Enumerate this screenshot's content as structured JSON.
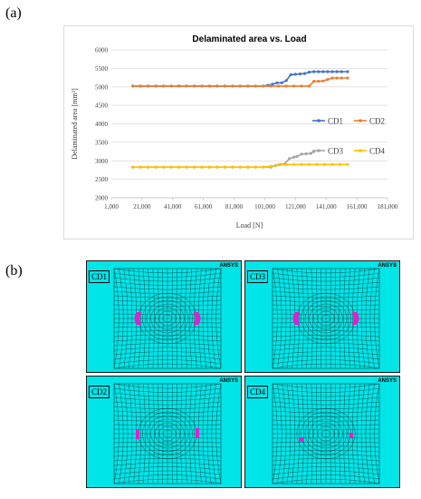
{
  "panel_labels": {
    "a": "(a)",
    "b": "(b)"
  },
  "chart_data": {
    "type": "line",
    "title": "Delaminated area vs. Load",
    "xlabel": "Load [N]",
    "ylabel": "Delaminated area  [mm²]",
    "xlim": [
      1000,
      181000
    ],
    "ylim": [
      2000,
      6000
    ],
    "xticks": [
      1000,
      21000,
      41000,
      61000,
      81000,
      101000,
      121000,
      141000,
      161000,
      181000
    ],
    "xtick_labels": [
      "1,000",
      "21,000",
      "41,000",
      "61,000",
      "81,000",
      "101,000",
      "121,000",
      "141,000",
      "161,000",
      "181,000"
    ],
    "yticks": [
      2000,
      2500,
      3000,
      3500,
      4000,
      4500,
      5000,
      5500,
      6000
    ],
    "grid": "horizontal",
    "legend_position": "right",
    "series": [
      {
        "name": "CD1",
        "color": "#4472c4",
        "x": [
          15000,
          20000,
          25000,
          30000,
          35000,
          40000,
          45000,
          50000,
          55000,
          60000,
          65000,
          70000,
          75000,
          80000,
          85000,
          90000,
          95000,
          100000,
          103000,
          106000,
          109000,
          112000,
          115000,
          118000,
          121000,
          124000,
          127000,
          130000,
          133000,
          136000,
          139000,
          142000,
          145000,
          148000,
          151000,
          155000
        ],
        "y": [
          5020,
          5020,
          5020,
          5020,
          5020,
          5020,
          5020,
          5020,
          5020,
          5020,
          5020,
          5020,
          5020,
          5020,
          5020,
          5020,
          5020,
          5020,
          5040,
          5070,
          5110,
          5110,
          5170,
          5330,
          5340,
          5350,
          5360,
          5400,
          5410,
          5410,
          5410,
          5410,
          5410,
          5410,
          5410,
          5410
        ]
      },
      {
        "name": "CD2",
        "color": "#ed7d31",
        "x": [
          15000,
          20000,
          25000,
          30000,
          35000,
          40000,
          45000,
          50000,
          55000,
          60000,
          65000,
          70000,
          75000,
          80000,
          85000,
          90000,
          95000,
          100000,
          105000,
          110000,
          115000,
          120000,
          125000,
          130000,
          133000,
          136000,
          139000,
          142000,
          145000,
          148000,
          151000,
          155000
        ],
        "y": [
          5020,
          5020,
          5020,
          5020,
          5020,
          5020,
          5020,
          5020,
          5020,
          5020,
          5020,
          5020,
          5020,
          5020,
          5020,
          5020,
          5020,
          5020,
          5020,
          5020,
          5020,
          5020,
          5020,
          5020,
          5150,
          5150,
          5160,
          5200,
          5240,
          5240,
          5240,
          5240
        ]
      },
      {
        "name": "CD3",
        "color": "#a5a5a5",
        "x": [
          15000,
          20000,
          25000,
          30000,
          35000,
          40000,
          45000,
          50000,
          55000,
          60000,
          65000,
          70000,
          75000,
          80000,
          85000,
          90000,
          95000,
          100000,
          105000,
          108000,
          111000,
          114000,
          117000,
          120000,
          122000,
          125000,
          128000,
          131000,
          133000
        ],
        "y": [
          2830,
          2830,
          2830,
          2830,
          2830,
          2830,
          2830,
          2830,
          2830,
          2830,
          2830,
          2830,
          2830,
          2830,
          2830,
          2830,
          2830,
          2830,
          2830,
          2870,
          2900,
          2920,
          3060,
          3100,
          3120,
          3180,
          3190,
          3200,
          3250
        ]
      },
      {
        "name": "CD4",
        "color": "#ffc000",
        "x": [
          15000,
          20000,
          25000,
          30000,
          35000,
          40000,
          45000,
          50000,
          55000,
          60000,
          65000,
          70000,
          75000,
          80000,
          85000,
          90000,
          95000,
          100000,
          105000,
          110000,
          115000,
          120000,
          125000,
          130000,
          135000,
          140000,
          145000,
          150000,
          155000
        ],
        "y": [
          2830,
          2830,
          2830,
          2830,
          2830,
          2830,
          2830,
          2830,
          2830,
          2830,
          2830,
          2830,
          2830,
          2830,
          2830,
          2830,
          2830,
          2830,
          2850,
          2890,
          2900,
          2900,
          2900,
          2900,
          2900,
          2900,
          2900,
          2900,
          2900
        ]
      }
    ]
  },
  "meshes": [
    {
      "tag": "CD1",
      "logo": "ANSYS",
      "patch_color": "#e01fd0",
      "patches": "side-large"
    },
    {
      "tag": "CD3",
      "logo": "ANSYS",
      "patch_color": "#e01fd0",
      "patches": "side-large"
    },
    {
      "tag": "CD2",
      "logo": "ANSYS",
      "patch_color": "#e01fd0",
      "patches": "side-small"
    },
    {
      "tag": "CD4",
      "logo": "ANSYS",
      "patch_color": "#e01fd0",
      "patches": "dots"
    }
  ]
}
